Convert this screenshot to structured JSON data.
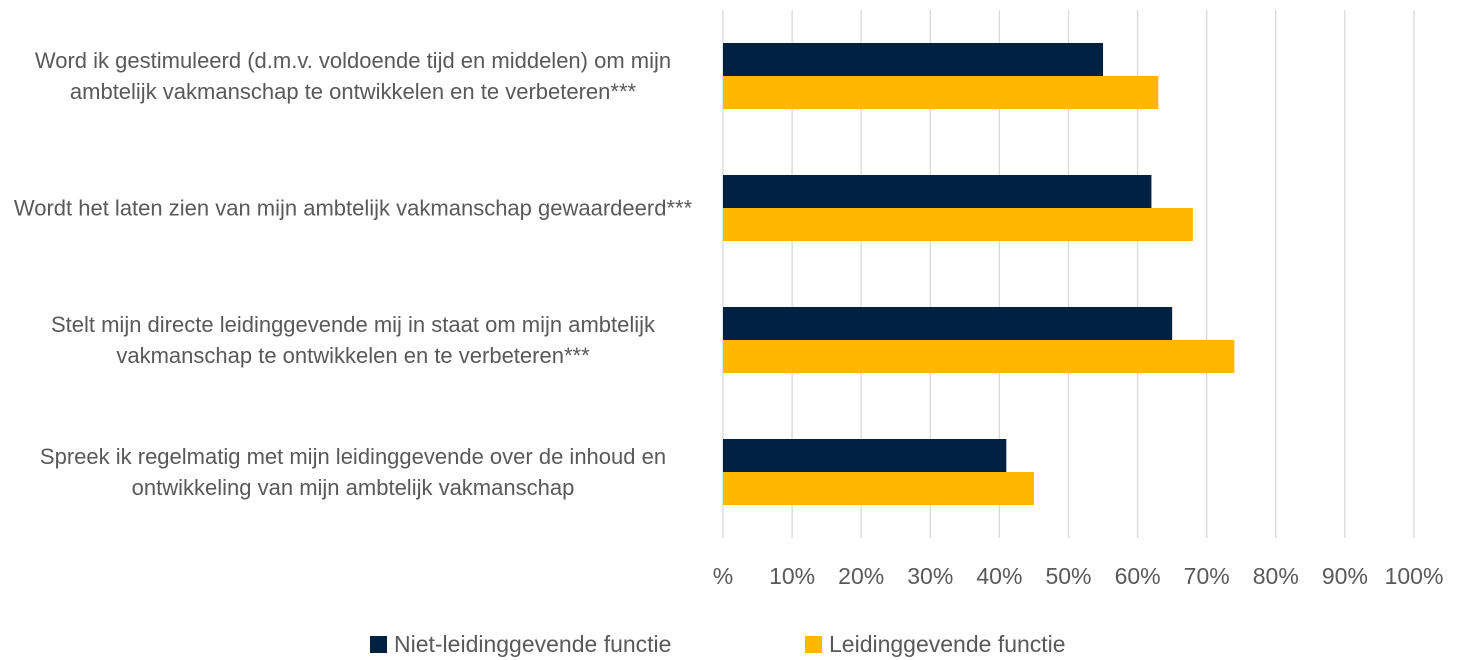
{
  "chart_data": {
    "type": "barh",
    "categories": [
      "Word ik gestimuleerd (d.m.v. voldoende tijd en middelen) om mijn ambtelijk vakmanschap te ontwikkelen en te verbeteren***",
      "Wordt het laten zien van mijn ambtelijk vakmanschap gewaardeerd***",
      "Stelt mijn directe leidinggevende mij in staat om mijn ambtelijk vakmanschap te ontwikkelen en te verbeteren***",
      "Spreek ik regelmatig met mijn leidinggevende over de inhoud en ontwikkeling van mijn ambtelijk vakmanschap"
    ],
    "series": [
      {
        "name": "Niet-leidinggevende functie",
        "color": "#002142",
        "values": [
          55,
          62,
          65,
          41
        ]
      },
      {
        "name": "Leidinggevende functie",
        "color": "#ffb800",
        "values": [
          63,
          68,
          74,
          45
        ]
      }
    ],
    "xlim": [
      0,
      100
    ],
    "xticks": [
      {
        "value": 0,
        "label": "%"
      },
      {
        "value": 10,
        "label": "10%"
      },
      {
        "value": 20,
        "label": "20%"
      },
      {
        "value": 30,
        "label": "30%"
      },
      {
        "value": 40,
        "label": "40%"
      },
      {
        "value": 50,
        "label": "50%"
      },
      {
        "value": 60,
        "label": "60%"
      },
      {
        "value": 70,
        "label": "70%"
      },
      {
        "value": 80,
        "label": "80%"
      },
      {
        "value": 90,
        "label": "90%"
      },
      {
        "value": 100,
        "label": "100%"
      }
    ],
    "grid": true,
    "legend": "bottom"
  }
}
